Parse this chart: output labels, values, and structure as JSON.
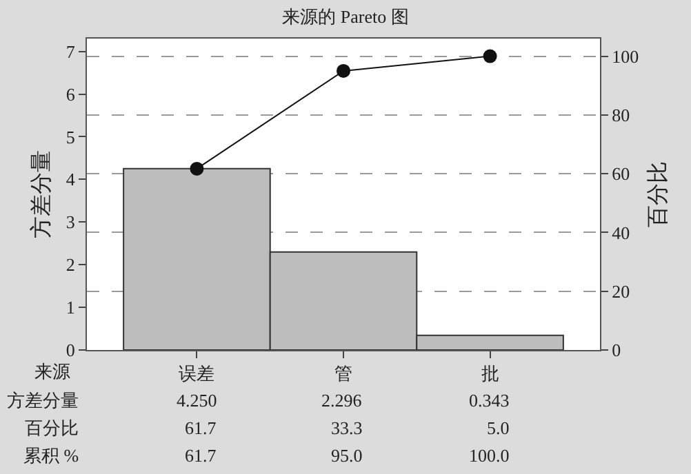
{
  "chart_data": {
    "type": "bar",
    "title": "来源的 Pareto 图",
    "xlabel": "来源",
    "ylabel": "方差分量",
    "y2label": "百分比",
    "categories": [
      "误差",
      "管",
      "批"
    ],
    "series": [
      {
        "color": "#bdbdbd",
        "values": [
          4.25,
          2.296,
          0.343
        ],
        "value_labels": [
          "4.250",
          "2.296",
          "0.343"
        ]
      },
      {
        "type": "line",
        "axis": "y2",
        "color": "#111111",
        "values": [
          61.7,
          95.0,
          100.0
        ],
        "value_labels": [
          "61.7",
          "95.0",
          "100.0"
        ],
        "marker": "circle",
        "line_style": "solid"
      }
    ],
    "annotations": [
      "方差分量",
      "百分比",
      "累积 %",
      "61.7",
      "33.3",
      "5.0"
    ],
    "ylim": [
      0,
      7.3
    ],
    "yticks": [
      0,
      1,
      2,
      3,
      4,
      5,
      6,
      7
    ],
    "y2lim": [
      0,
      106
    ],
    "y2ticks": [
      0,
      20,
      40,
      60,
      80,
      100
    ],
    "grid": "y",
    "legend": false
  }
}
